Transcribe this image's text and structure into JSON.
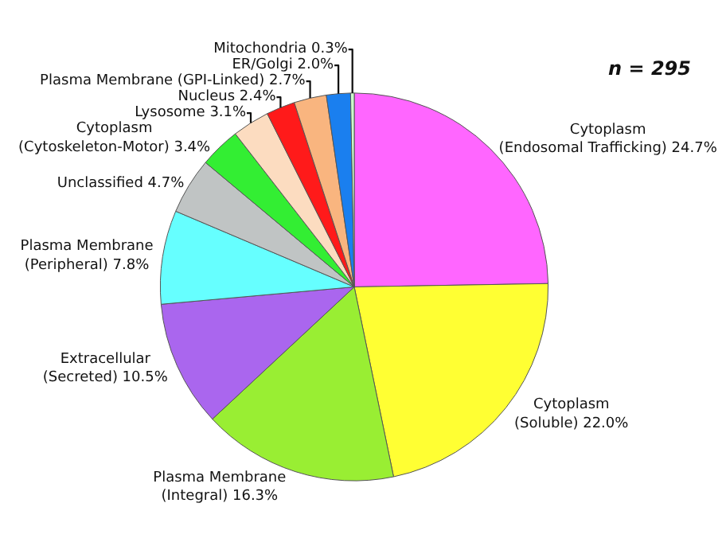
{
  "chart_data": {
    "type": "pie",
    "categories": [
      "Cytoplasm\n(Endosomal Trafficking)",
      "Cytoplasm\n(Soluble)",
      "Plasma Membrane\n(Integral)",
      "Extracellular\n(Secreted)",
      "Plasma Membrane\n(Peripheral)",
      "Unclassified",
      "Cytoplasm\n(Cytoskeleton-Motor)",
      "Lysosome",
      "Nucleus",
      "Plasma Membrane (GPI-Linked)",
      "ER/Golgi",
      "Mitochondria"
    ],
    "values": [
      24.7,
      22.0,
      16.3,
      10.5,
      7.8,
      4.7,
      3.4,
      3.1,
      2.4,
      2.7,
      2.0,
      0.3
    ],
    "colors": [
      "#ff66ff",
      "#ffff33",
      "#99ee33",
      "#aa66ee",
      "#66ffff",
      "#c0c4c4",
      "#33ee33",
      "#fcdcc0",
      "#ff1a1a",
      "#f9b57f",
      "#1a7fef",
      "#ccffcc"
    ],
    "value_labels": [
      "24.7%",
      "22.0%",
      "16.3%",
      "10.5%",
      "7.8%",
      "4.7%",
      "3.4%",
      "3.1%",
      "2.4%",
      "2.7%",
      "2.0%",
      "0.3%"
    ],
    "annotations": [
      "n = 295"
    ],
    "legend": false
  }
}
